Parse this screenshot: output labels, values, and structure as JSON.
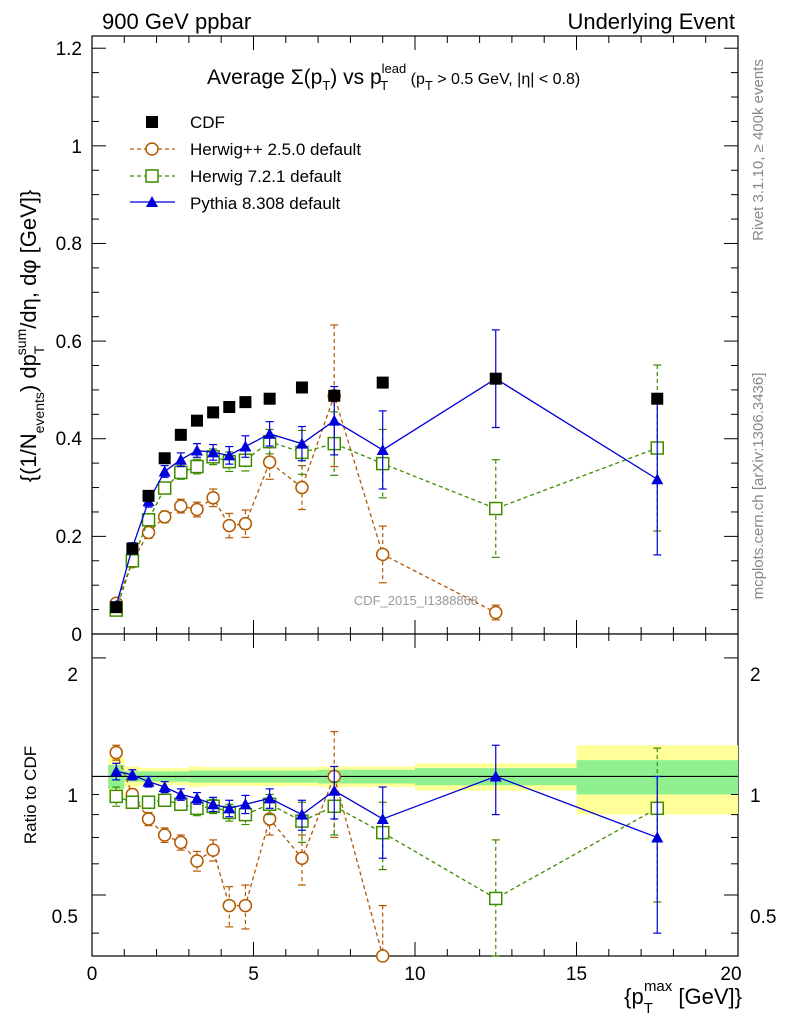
{
  "header": {
    "left": "900 GeV ppbar",
    "right": "Underlying Event"
  },
  "side_labels": {
    "rivet": "Rivet 3.1.10, ≥ 400k events",
    "mcplots": "mcplots.cern.ch [arXiv:1306.3436]"
  },
  "chart_data": {
    "type": "scatter",
    "title_parts": {
      "average": "Average",
      "sigma": "Σ(p",
      "sub_t": "T",
      "close": ")",
      "vs": " vs p",
      "sup_lead": "lead",
      "cut_open": " (p",
      "cut_rest": " > 0.5 GeV, |η| < 0.8)"
    },
    "watermark": "CDF_2015_I1388868",
    "ylabel_main": "{(1/N_events) dp_T^sum/dη, dφ [GeV]}",
    "ylabel_ratio": "Ratio to CDF",
    "xlabel": "{p_T^max [GeV]}",
    "xlim": [
      0,
      20
    ],
    "ylim_main": [
      0,
      1.225
    ],
    "ylim_ratio": [
      0.35,
      2.3
    ],
    "x_ticks": [
      "0",
      "5",
      "10",
      "15",
      "20"
    ],
    "y_ticks_main": [
      "0",
      "0.2",
      "0.4",
      "0.6",
      "0.8",
      "1",
      "1.2"
    ],
    "y_ticks_ratio": [
      "0.5",
      "1",
      "2"
    ],
    "x": [
      0.75,
      1.25,
      1.75,
      2.25,
      2.75,
      3.25,
      3.75,
      4.25,
      4.75,
      5.5,
      6.5,
      7.5,
      9.0,
      12.5,
      17.5
    ],
    "bin_edges": [
      0.5,
      1.0,
      1.5,
      2.0,
      2.5,
      3.0,
      3.5,
      4.0,
      4.5,
      5.0,
      6.0,
      7.0,
      8.0,
      10.0,
      15.0,
      20.0
    ],
    "series": [
      {
        "name": "CDF",
        "legend": "CDF",
        "color": "#000000",
        "marker": "square-filled",
        "line": "none",
        "values": [
          0.055,
          0.175,
          0.283,
          0.36,
          0.408,
          0.437,
          0.454,
          0.465,
          0.475,
          0.482,
          0.505,
          0.488,
          0.515,
          0.523,
          0.482
        ],
        "stat_band": [
          0.07,
          0.03,
          0.03,
          0.03,
          0.03,
          0.035,
          0.035,
          0.035,
          0.035,
          0.035,
          0.035,
          0.04,
          0.04,
          0.05,
          0.1
        ],
        "total_band": [
          0.12,
          0.06,
          0.05,
          0.05,
          0.05,
          0.06,
          0.055,
          0.055,
          0.055,
          0.055,
          0.055,
          0.06,
          0.06,
          0.08,
          0.2
        ]
      },
      {
        "name": "Herwig++ 2.5.0",
        "legend": "Herwig++ 2.5.0 default",
        "color": "#b35900",
        "marker": "circle-open",
        "line": "dashed",
        "values": [
          0.063,
          0.148,
          0.208,
          0.24,
          0.262,
          0.255,
          0.279,
          0.222,
          0.226,
          0.352,
          0.3,
          0.488,
          0.163,
          0.044,
          null
        ],
        "errors": [
          0.006,
          0.01,
          0.012,
          0.012,
          0.014,
          0.015,
          0.018,
          0.025,
          0.028,
          0.035,
          0.045,
          0.145,
          0.058,
          0.015,
          null
        ]
      },
      {
        "name": "Herwig 7.2.1",
        "legend": "Herwig 7.2.1 default",
        "color": "#3d8c00",
        "marker": "square-open",
        "line": "dashed",
        "values": [
          0.049,
          0.15,
          0.234,
          0.299,
          0.331,
          0.343,
          0.363,
          0.353,
          0.356,
          0.394,
          0.372,
          0.39,
          0.349,
          0.257,
          0.381
        ],
        "errors": [
          0.005,
          0.01,
          0.012,
          0.012,
          0.014,
          0.015,
          0.016,
          0.02,
          0.022,
          0.025,
          0.045,
          0.065,
          0.07,
          0.1,
          0.17
        ]
      },
      {
        "name": "Pythia 8.308",
        "legend": "Pythia 8.308 default",
        "color": "#0000d9",
        "marker": "triangle-filled",
        "line": "solid",
        "values": [
          0.058,
          0.177,
          0.272,
          0.333,
          0.357,
          0.376,
          0.372,
          0.366,
          0.384,
          0.41,
          0.39,
          0.437,
          0.377,
          0.523,
          0.317
        ],
        "errors": [
          0.005,
          0.01,
          0.012,
          0.012,
          0.014,
          0.014,
          0.016,
          0.018,
          0.022,
          0.025,
          0.035,
          0.07,
          0.08,
          0.1,
          0.155
        ]
      }
    ],
    "ratio": {
      "Herwig++ 2.5.0": [
        1.15,
        0.9,
        0.78,
        0.71,
        0.68,
        0.61,
        0.65,
        0.47,
        0.47,
        0.78,
        0.62,
        1.0,
        0.35,
        null,
        null
      ],
      "Herwig 7.2.1": [
        0.89,
        0.86,
        0.86,
        0.87,
        0.85,
        0.83,
        0.84,
        0.81,
        0.8,
        0.85,
        0.77,
        0.84,
        0.72,
        0.49,
        0.83
      ],
      "Pythia 8.308": [
        1.03,
        1.01,
        0.97,
        0.94,
        0.9,
        0.88,
        0.85,
        0.83,
        0.85,
        0.88,
        0.8,
        0.92,
        0.78,
        1.0,
        0.7
      ],
      "Herwig++ 2.5.0 errors": [
        0.05,
        0.03,
        0.03,
        0.03,
        0.03,
        0.035,
        0.04,
        0.055,
        0.06,
        0.07,
        0.09,
        0.3,
        0.12,
        null,
        null
      ],
      "Herwig 7.2.1 errors": [
        0.05,
        0.03,
        0.03,
        0.03,
        0.03,
        0.035,
        0.035,
        0.04,
        0.045,
        0.05,
        0.09,
        0.13,
        0.14,
        0.2,
        0.35
      ],
      "Pythia 8.308 errors": [
        0.05,
        0.03,
        0.03,
        0.03,
        0.03,
        0.03,
        0.035,
        0.04,
        0.045,
        0.05,
        0.07,
        0.14,
        0.16,
        0.2,
        0.3
      ]
    }
  }
}
